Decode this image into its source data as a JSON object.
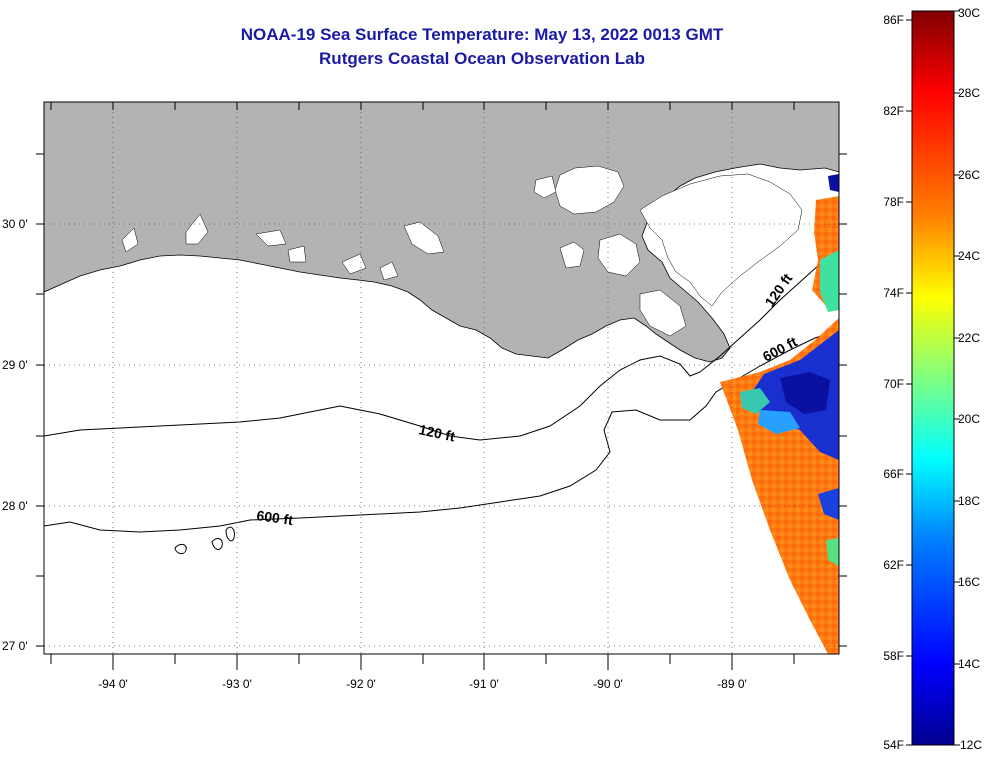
{
  "title": {
    "line1": "NOAA-19 Sea Surface Temperature:  May 13, 2022 0013 GMT",
    "line2": "Rutgers Coastal Ocean Observation Lab"
  },
  "map": {
    "lon_labels": [
      "-94 0'",
      "-93 0'",
      "-92 0'",
      "-91 0'",
      "-90 0'",
      "-89 0'"
    ],
    "lat_labels": [
      "30 0'",
      "29 0'",
      "28 0'",
      "27 0'"
    ],
    "contours": [
      {
        "label": "120 ft"
      },
      {
        "label": "600 ft"
      },
      {
        "label": "120 ft"
      },
      {
        "label": "600 ft"
      }
    ],
    "colors": {
      "land": "#b3b3b3",
      "ocean": "#ffffff"
    }
  },
  "colorbar": {
    "fahrenheit_labels": [
      "86F",
      "82F",
      "78F",
      "74F",
      "70F",
      "66F",
      "62F",
      "58F",
      "54F"
    ],
    "celsius_labels": [
      "30C",
      "28C",
      "26C",
      "24C",
      "22C",
      "20C",
      "18C",
      "16C",
      "14C",
      "12C"
    ],
    "range_c": [
      12,
      30
    ],
    "gradient_colors": [
      "#00008f",
      "#0000ff",
      "#0080ff",
      "#00ffff",
      "#80ff80",
      "#ffff00",
      "#ff8000",
      "#ff0000",
      "#800000"
    ]
  }
}
